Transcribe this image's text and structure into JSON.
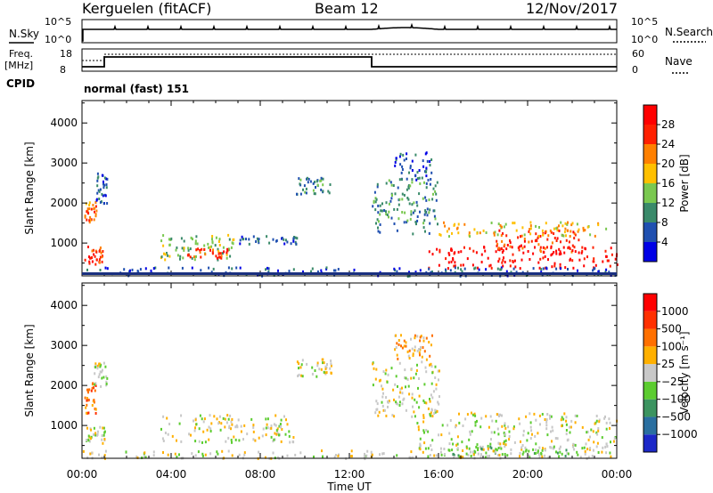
{
  "header": {
    "station": "Kerguelen (fitACF)",
    "beam": "Beam 12",
    "date": "12/Nov/2017"
  },
  "status_panels": {
    "nsky_label": "N.Sky",
    "nsearch_label": "N.Search",
    "power_ticks": [
      "10^5",
      "10^0"
    ],
    "freq_label_line1": "Freq.",
    "freq_label_line2": "[MHz]",
    "freq_ticks": [
      "18",
      "8"
    ],
    "nave_label": "Nave",
    "nave_ticks": [
      "60",
      "0"
    ],
    "cpid_label": "CPID",
    "cpid_value": "normal (fast) 151"
  },
  "chart_data": [
    {
      "type": "heatmap",
      "name": "power",
      "ylabel": "Slant Range [km]",
      "xlabel": "",
      "ylim": [
        180,
        4560
      ],
      "yticks": [
        "1000",
        "2000",
        "3000",
        "4000"
      ],
      "xticks": [
        "00:00",
        "04:00",
        "08:00",
        "12:00",
        "16:00",
        "20:00",
        "00:00"
      ],
      "xlim_hours": [
        0,
        24
      ],
      "colorbar": {
        "label": "Power [dB]",
        "ticks": [
          "4",
          "8",
          "12",
          "16",
          "20",
          "24",
          "28"
        ],
        "colors": [
          "#0000e6",
          "#2050b0",
          "#3a8a6a",
          "#7ac850",
          "#ffc000",
          "#ff8000",
          "#ff2000",
          "#ff0000"
        ]
      },
      "regions": [
        {
          "t0": 0.1,
          "t1": 0.9,
          "r0": 450,
          "r1": 1000,
          "level": 6
        },
        {
          "t0": 0.1,
          "t1": 0.7,
          "r0": 1550,
          "r1": 2050,
          "level": 5
        },
        {
          "t0": 0.5,
          "t1": 1.1,
          "r0": 2000,
          "r1": 2800,
          "level": 1
        },
        {
          "t0": 3.5,
          "t1": 6.8,
          "r0": 600,
          "r1": 1250,
          "level": 3
        },
        {
          "t0": 4.7,
          "t1": 6.5,
          "r0": 650,
          "r1": 900,
          "level": 6
        },
        {
          "t0": 6.8,
          "t1": 9.8,
          "r0": 1000,
          "r1": 1200,
          "level": 1
        },
        {
          "t0": 9.6,
          "t1": 11.2,
          "r0": 2250,
          "r1": 2700,
          "level": 2
        },
        {
          "t0": 13.0,
          "t1": 16.0,
          "r0": 1250,
          "r1": 2600,
          "level": 2
        },
        {
          "t0": 14.0,
          "t1": 15.7,
          "r0": 2600,
          "r1": 3300,
          "level": 1
        },
        {
          "t0": 15.5,
          "t1": 24.0,
          "r0": 400,
          "r1": 950,
          "level": 7
        },
        {
          "t0": 18.5,
          "t1": 22.5,
          "r0": 800,
          "r1": 1350,
          "level": 6
        },
        {
          "t0": 16.0,
          "t1": 23.5,
          "r0": 1200,
          "r1": 1550,
          "level": 4
        },
        {
          "t0": 0.0,
          "t1": 24.0,
          "r0": 200,
          "r1": 420,
          "level": 1
        }
      ]
    },
    {
      "type": "heatmap",
      "name": "velocity",
      "ylabel": "Slant Range [km]",
      "xlabel": "Time UT",
      "ylim": [
        180,
        4560
      ],
      "yticks": [
        "1000",
        "2000",
        "3000",
        "4000"
      ],
      "xticks": [
        "00:00",
        "04:00",
        "08:00",
        "12:00",
        "16:00",
        "20:00",
        "00:00"
      ],
      "xlim_hours": [
        0,
        24
      ],
      "colorbar": {
        "label": "Velocity [m s⁻¹]",
        "ticks": [
          "1000",
          "500",
          "100",
          "25",
          "−25",
          "−100",
          "−500",
          "−1000"
        ],
        "colors": [
          "#1c28c8",
          "#2a6fa0",
          "#3c9460",
          "#5ccc30",
          "#c8c8c8",
          "#ffb000",
          "#ff7000",
          "#ff3000",
          "#ff0000"
        ]
      },
      "regions": [
        {
          "t0": 0.1,
          "t1": 0.6,
          "r0": 1300,
          "r1": 2100,
          "level": 6
        },
        {
          "t0": 0.1,
          "t1": 1.0,
          "r0": 500,
          "r1": 1000,
          "level": 4
        },
        {
          "t0": 0.5,
          "t1": 1.1,
          "r0": 2000,
          "r1": 2600,
          "level": 4
        },
        {
          "t0": 3.5,
          "t1": 9.5,
          "r0": 600,
          "r1": 1300,
          "level": 4
        },
        {
          "t0": 9.6,
          "t1": 11.2,
          "r0": 2250,
          "r1": 2700,
          "level": 4
        },
        {
          "t0": 13.0,
          "t1": 16.0,
          "r0": 1250,
          "r1": 2600,
          "level": 4
        },
        {
          "t0": 14.0,
          "t1": 15.7,
          "r0": 2600,
          "r1": 3300,
          "level": 5
        },
        {
          "t0": 15.0,
          "t1": 24.0,
          "r0": 400,
          "r1": 1350,
          "level": 4
        },
        {
          "t0": 16.0,
          "t1": 22.0,
          "r0": 250,
          "r1": 500,
          "level": 3
        },
        {
          "t0": 0.0,
          "t1": 24.0,
          "r0": 200,
          "r1": 400,
          "level": 4
        }
      ]
    }
  ],
  "colors": {
    "frame": "#000000",
    "ground_band": "#1a3080"
  }
}
